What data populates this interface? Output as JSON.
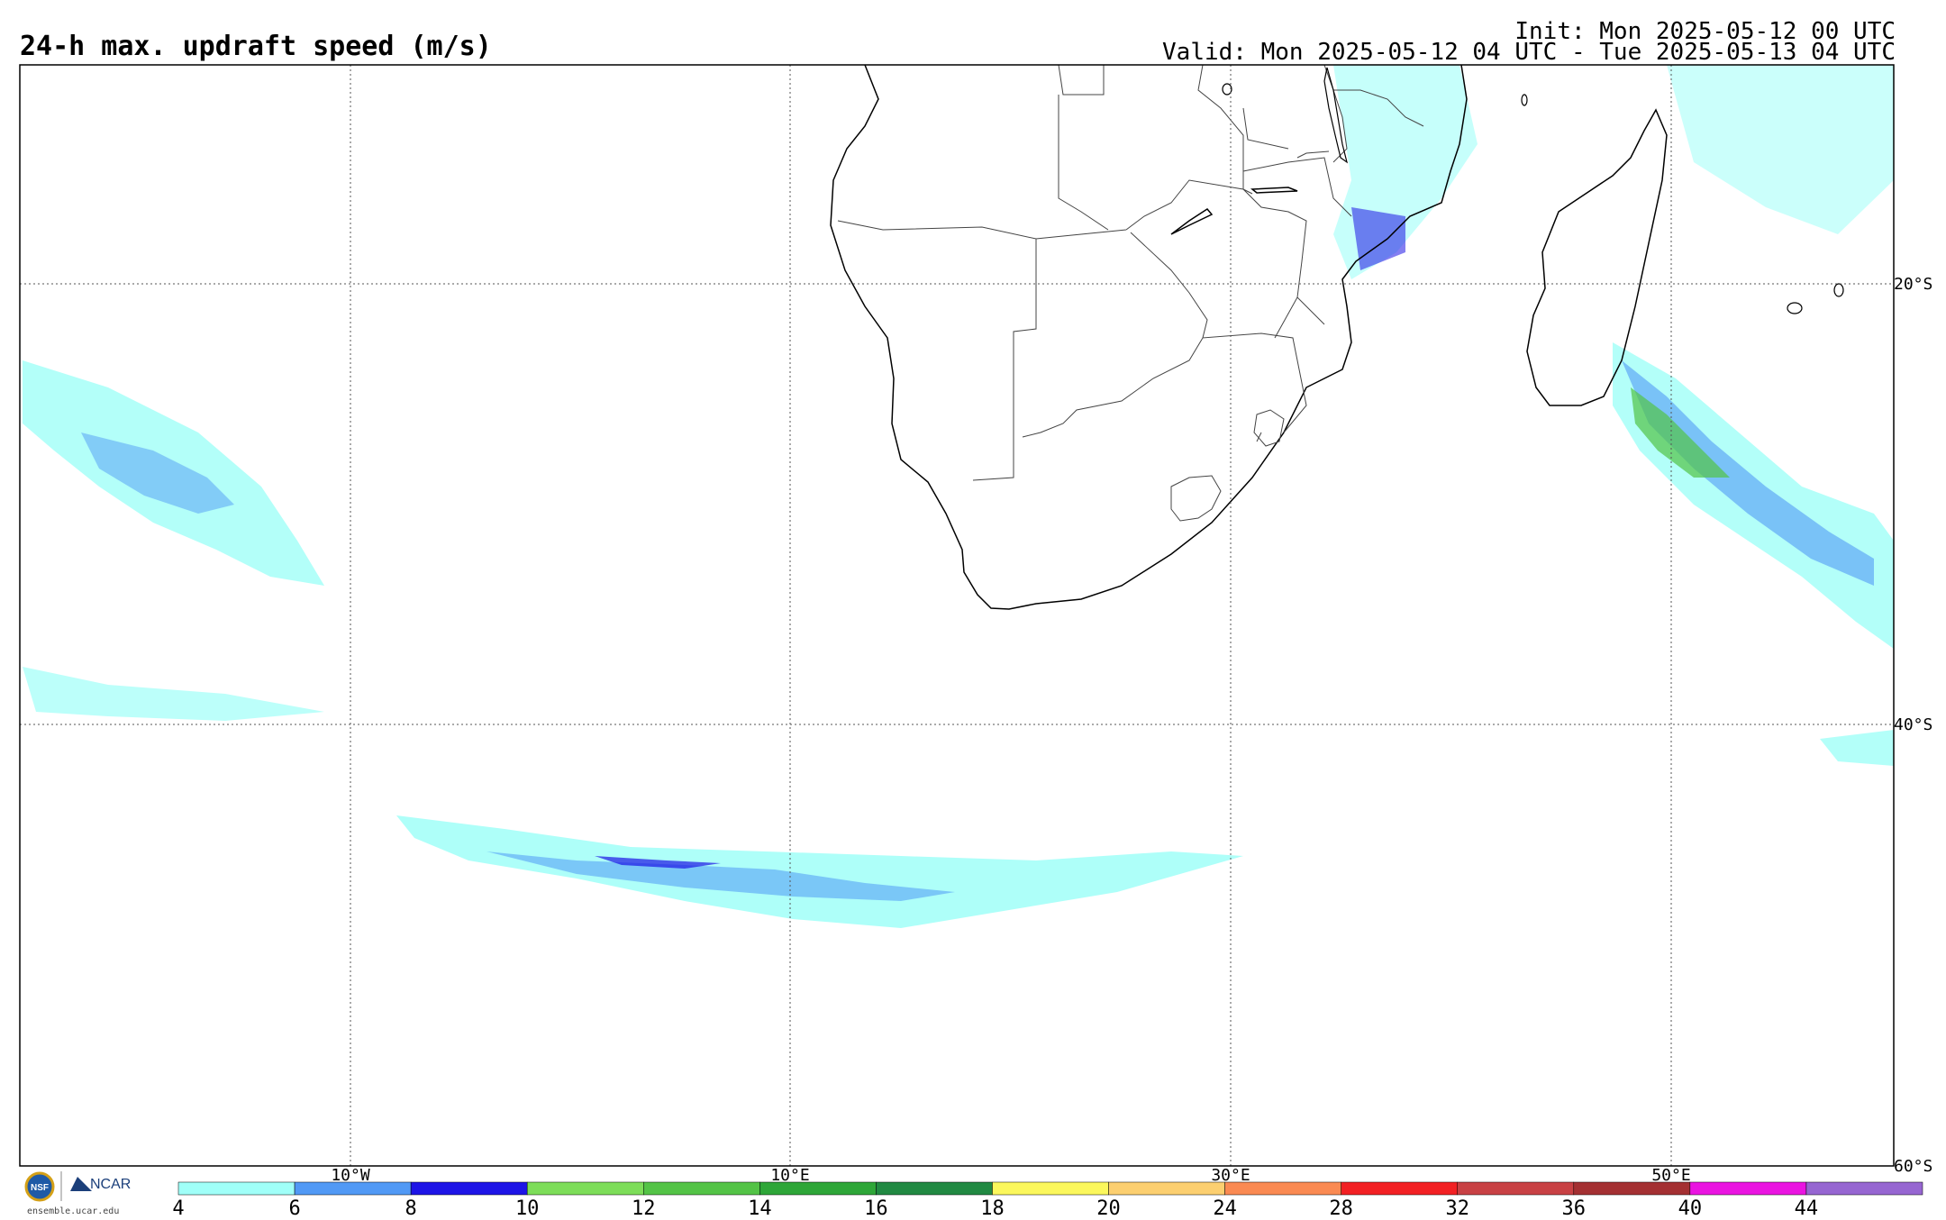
{
  "header": {
    "title": "24-h max. updraft speed (m/s)",
    "init": "Init: Mon 2025-05-12 00 UTC",
    "valid": "Valid: Mon 2025-05-12 04 UTC - Tue 2025-05-13 04 UTC"
  },
  "map": {
    "lon_labels": [
      "10°W",
      "10°E",
      "30°E",
      "50°E"
    ],
    "lat_labels": [
      "20°S",
      "40°S",
      "60°S"
    ],
    "grid": "dotted"
  },
  "colorbar": {
    "ticks": [
      "4",
      "6",
      "8",
      "10",
      "12",
      "14",
      "16",
      "18",
      "20",
      "24",
      "28",
      "32",
      "36",
      "40",
      "44"
    ],
    "colors": [
      "#a0fff8",
      "#5199f5",
      "#1d14e6",
      "#7ddd59",
      "#53c346",
      "#2ea638",
      "#218942",
      "#fbf75c",
      "#fccf70",
      "#fa8a52",
      "#f22023",
      "#c84144",
      "#a43032",
      "#ea14e1",
      "#9666d1"
    ]
  },
  "logos": {
    "nsf": "NSF",
    "ncar": "NCAR",
    "url": "ensemble.ucar.edu"
  }
}
